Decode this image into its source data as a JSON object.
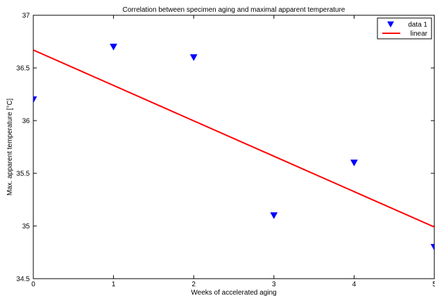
{
  "chart_data": {
    "type": "scatter",
    "title": "Correlation between specimen aging and maximal apparent temperature",
    "xlabel": "Weeks of accelerated aging",
    "ylabel": "Max. apparent temperature [°C]",
    "xlim": [
      0,
      5
    ],
    "ylim": [
      34.5,
      37
    ],
    "xticks": [
      0,
      1,
      2,
      3,
      4,
      5
    ],
    "xtick_labels": [
      "0",
      "1",
      "2",
      "3",
      "4",
      "5"
    ],
    "yticks": [
      34.5,
      35,
      35.5,
      36,
      36.5,
      37
    ],
    "ytick_labels": [
      "34.5",
      "35",
      "35.5",
      "36",
      "36.5",
      "37"
    ],
    "grid": false,
    "legend_position": "top-right",
    "series": [
      {
        "name": "data 1",
        "kind": "scatter",
        "marker": "triangle-down",
        "color": "#0000ff",
        "x": [
          0,
          1,
          2,
          3,
          4,
          5
        ],
        "y": [
          36.2,
          36.7,
          36.6,
          35.1,
          35.6,
          34.8
        ]
      },
      {
        "name": "linear",
        "kind": "line",
        "color": "#ff0000",
        "x": [
          0,
          5
        ],
        "y": [
          36.67,
          34.99
        ]
      }
    ]
  }
}
